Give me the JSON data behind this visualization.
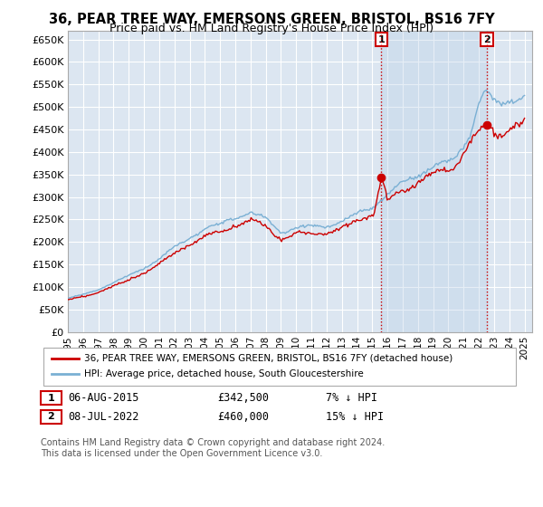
{
  "title": "36, PEAR TREE WAY, EMERSONS GREEN, BRISTOL, BS16 7FY",
  "subtitle": "Price paid vs. HM Land Registry's House Price Index (HPI)",
  "title_fontsize": 10.5,
  "subtitle_fontsize": 9,
  "ylabel_ticks": [
    "£0",
    "£50K",
    "£100K",
    "£150K",
    "£200K",
    "£250K",
    "£300K",
    "£350K",
    "£400K",
    "£450K",
    "£500K",
    "£550K",
    "£600K",
    "£650K"
  ],
  "ytick_values": [
    0,
    50000,
    100000,
    150000,
    200000,
    250000,
    300000,
    350000,
    400000,
    450000,
    500000,
    550000,
    600000,
    650000
  ],
  "ylim": [
    0,
    670000
  ],
  "xlim_start": 1995.0,
  "xlim_end": 2025.5,
  "xtick_labels": [
    "1995",
    "1996",
    "1997",
    "1998",
    "1999",
    "2000",
    "2001",
    "2002",
    "2003",
    "2004",
    "2005",
    "2006",
    "2007",
    "2008",
    "2009",
    "2010",
    "2011",
    "2012",
    "2013",
    "2014",
    "2015",
    "2016",
    "2017",
    "2018",
    "2019",
    "2020",
    "2021",
    "2022",
    "2023",
    "2024",
    "2025"
  ],
  "xtick_values": [
    1995,
    1996,
    1997,
    1998,
    1999,
    2000,
    2001,
    2002,
    2003,
    2004,
    2005,
    2006,
    2007,
    2008,
    2009,
    2010,
    2011,
    2012,
    2013,
    2014,
    2015,
    2016,
    2017,
    2018,
    2019,
    2020,
    2021,
    2022,
    2023,
    2024,
    2025
  ],
  "background_color": "#dce6f1",
  "shade_color": "#c5d8ee",
  "grid_color": "#ffffff",
  "hpi_color": "#7ab0d4",
  "price_color": "#cc0000",
  "vline_color": "#cc0000",
  "marker1_x": 2015.6,
  "marker1_y": 342500,
  "marker1_label": "1",
  "marker2_x": 2022.52,
  "marker2_y": 460000,
  "marker2_label": "2",
  "marker_box_color": "#cc0000",
  "legend_label_price": "36, PEAR TREE WAY, EMERSONS GREEN, BRISTOL, BS16 7FY (detached house)",
  "legend_label_hpi": "HPI: Average price, detached house, South Gloucestershire",
  "table_rows": [
    {
      "num": "1",
      "date": "06-AUG-2015",
      "price": "£342,500",
      "hpi": "7% ↓ HPI"
    },
    {
      "num": "2",
      "date": "08-JUL-2022",
      "price": "£460,000",
      "hpi": "15% ↓ HPI"
    }
  ],
  "footnote": "Contains HM Land Registry data © Crown copyright and database right 2024.\nThis data is licensed under the Open Government Licence v3.0.",
  "footnote_fontsize": 7
}
